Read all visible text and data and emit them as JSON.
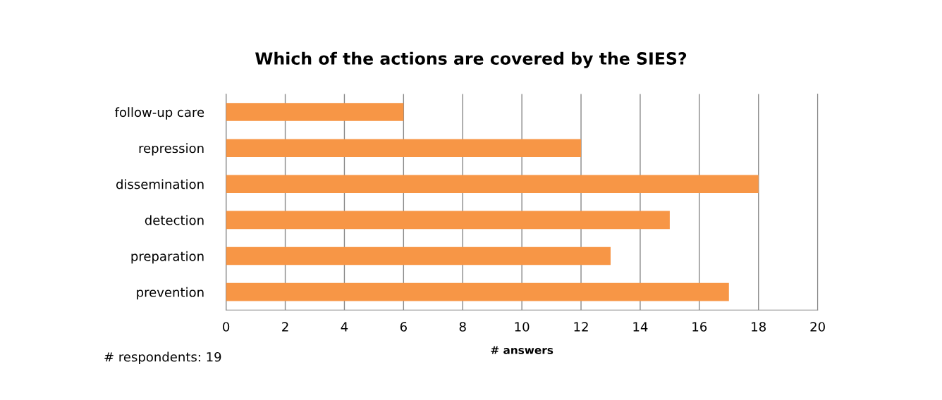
{
  "chart_data": {
    "type": "bar",
    "orientation": "horizontal",
    "title": "Which of the actions are covered by the SIES?",
    "xlabel": "# answers",
    "categories": [
      "follow-up care",
      "repression",
      "dissemination",
      "detection",
      "preparation",
      "prevention"
    ],
    "values": [
      6,
      12,
      18,
      15,
      13,
      17
    ],
    "color": "#f79646",
    "xlim": [
      0,
      20
    ],
    "xticks": [
      0,
      2,
      4,
      6,
      8,
      10,
      12,
      14,
      16,
      18,
      20
    ],
    "grid": "x",
    "annotations": [
      "# respondents: 19"
    ]
  }
}
